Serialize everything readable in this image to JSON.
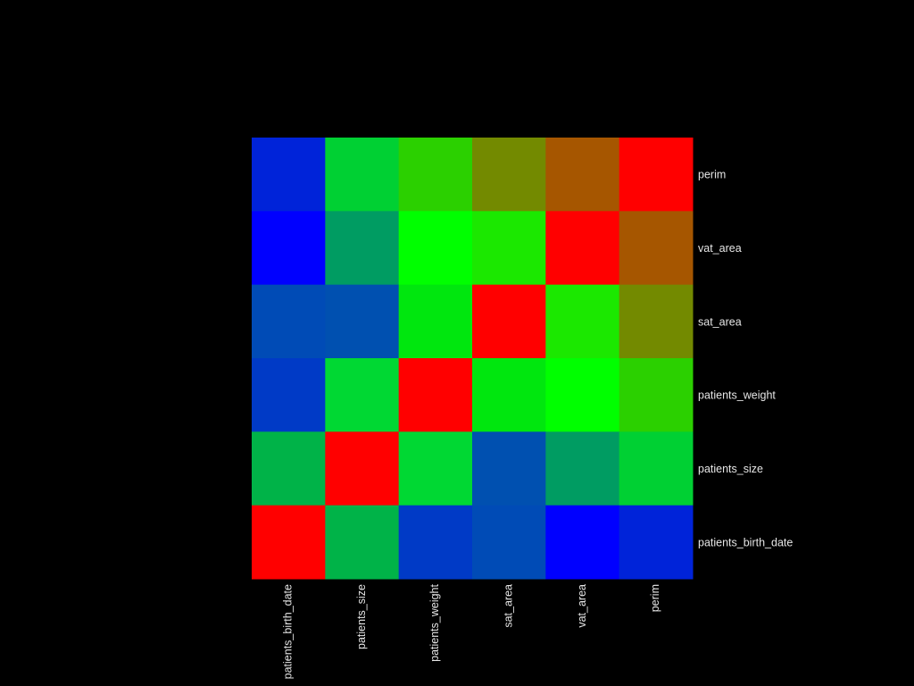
{
  "chart_data": {
    "type": "heatmap",
    "title": "",
    "xlabel": "",
    "ylabel": "",
    "x_categories": [
      "patients_birth_date",
      "patients_size",
      "patients_weight",
      "sat_area",
      "vat_area",
      "perim"
    ],
    "y_categories_top_to_bottom": [
      "perim",
      "vat_area",
      "sat_area",
      "patients_weight",
      "patients_size",
      "patients_birth_date"
    ],
    "colorscale": "blue-green-red",
    "cell_colors": [
      [
        "#0023d9",
        "#00d033",
        "#2bd000",
        "#738a00",
        "#a65600",
        "#ff0000"
      ],
      [
        "#0000ff",
        "#009c62",
        "#00ff00",
        "#1be800",
        "#ff0000",
        "#a65600"
      ],
      [
        "#004bb6",
        "#0050b0",
        "#00e70e",
        "#ff0000",
        "#1be800",
        "#738a00"
      ],
      [
        "#003ac6",
        "#00d833",
        "#ff0000",
        "#00e70e",
        "#00ff00",
        "#2bd000"
      ],
      [
        "#00b348",
        "#ff0000",
        "#00d833",
        "#0050b0",
        "#009c62",
        "#00d033"
      ],
      [
        "#ff0000",
        "#00b348",
        "#003ac6",
        "#004bb6",
        "#0000ff",
        "#0023d9"
      ]
    ]
  }
}
